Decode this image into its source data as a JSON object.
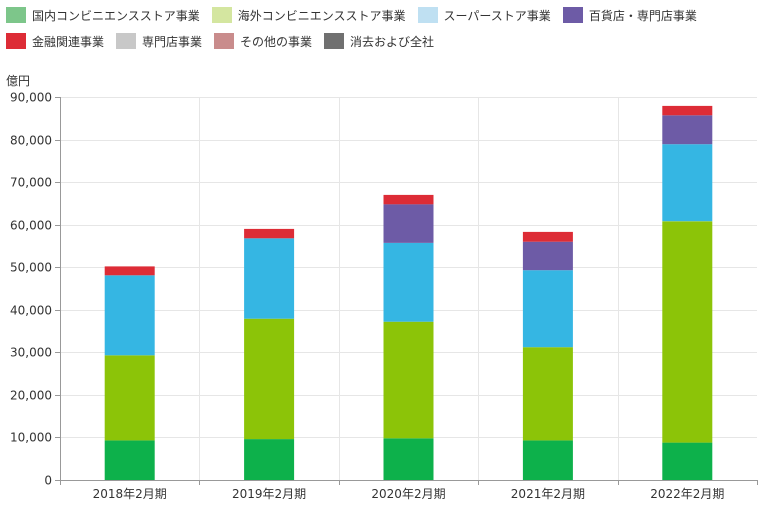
{
  "chart_data": {
    "type": "bar",
    "stacked": true,
    "ylabel": "億円",
    "ylim": [
      0,
      90000
    ],
    "yticks": [
      0,
      10000,
      20000,
      30000,
      40000,
      50000,
      60000,
      70000,
      80000,
      90000
    ],
    "ytick_labels": [
      "0",
      "10,000",
      "20,000",
      "30,000",
      "40,000",
      "50,000",
      "60,000",
      "70,000",
      "80,000",
      "90,000"
    ],
    "categories": [
      "2018年2月期",
      "2019年2月期",
      "2020年2月期",
      "2021年2月期",
      "2022年2月期"
    ],
    "grid": true,
    "legend_position": "top",
    "series": [
      {
        "name": "国内コンビニエンスストア事業",
        "legend_color": "#7dc68a",
        "color": "#0db14b",
        "values": [
          9300,
          9600,
          9800,
          9300,
          8800
        ]
      },
      {
        "name": "海外コンビニエンスストア事業",
        "legend_color": "#d4e6a0",
        "color": "#8cc408",
        "values": [
          20000,
          28300,
          27400,
          21900,
          52000
        ]
      },
      {
        "name": "スーパーストア事業",
        "legend_color": "#bfe0f2",
        "color": "#35b6e3",
        "values": [
          18800,
          18900,
          18500,
          18100,
          18100
        ]
      },
      {
        "name": "百貨店・専門店事業",
        "legend_color": "#6d5ba6",
        "color": "#6d5ba6",
        "values": [
          0,
          0,
          9100,
          6700,
          6800
        ]
      },
      {
        "name": "金融関連事業",
        "legend_color": "#dd2c36",
        "color": "#dd2c36",
        "values": [
          2100,
          2200,
          2200,
          2300,
          2200
        ]
      },
      {
        "name": "専門店事業",
        "legend_color": "#c8c8c8",
        "color": "#c8c8c8",
        "values": [
          0,
          0,
          0,
          0,
          0
        ]
      },
      {
        "name": "その他の事業",
        "legend_color": "#c98c8c",
        "color": "#c98c8c",
        "values": [
          0,
          0,
          0,
          0,
          0
        ]
      },
      {
        "name": "消去および全社",
        "legend_color": "#707070",
        "color": "#707070",
        "values": [
          0,
          0,
          0,
          0,
          0
        ]
      }
    ]
  }
}
